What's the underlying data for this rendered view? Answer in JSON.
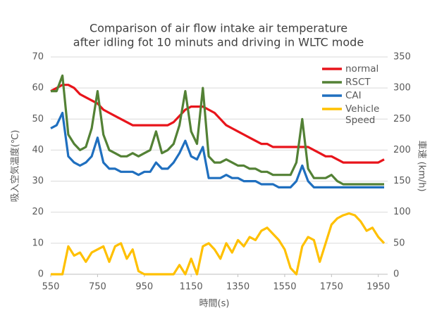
{
  "chart_data": {
    "type": "line",
    "title": [
      "Comparison of air flow intake air temperature",
      "after idling fot 10 minuts and driving in WLTC mode"
    ],
    "xlabel": "時間(s)",
    "ylabel": "吸入空気温度(℃)",
    "y2label": "車速 (km/h)",
    "x": [
      550,
      575,
      600,
      625,
      650,
      675,
      700,
      725,
      750,
      775,
      800,
      825,
      850,
      875,
      900,
      925,
      950,
      975,
      1000,
      1025,
      1050,
      1075,
      1100,
      1125,
      1150,
      1175,
      1200,
      1225,
      1250,
      1275,
      1300,
      1325,
      1350,
      1375,
      1400,
      1425,
      1450,
      1475,
      1500,
      1525,
      1550,
      1575,
      1600,
      1625,
      1650,
      1675,
      1700,
      1725,
      1750,
      1775,
      1800,
      1825,
      1850,
      1875,
      1900,
      1925,
      1950,
      1975
    ],
    "series": [
      {
        "name": "normal",
        "color": "#e8141b",
        "values": [
          59,
          60,
          61,
          61,
          60,
          58,
          57,
          56,
          55,
          53,
          52,
          51,
          50,
          49,
          48,
          48,
          48,
          48,
          48,
          48,
          48,
          49,
          51,
          53,
          54,
          54,
          54,
          53,
          52,
          50,
          48,
          47,
          46,
          45,
          44,
          43,
          42,
          42,
          41,
          41,
          41,
          41,
          41,
          41,
          41,
          40,
          39,
          38,
          38,
          37,
          36,
          36,
          36,
          36,
          36,
          36,
          36,
          37
        ]
      },
      {
        "name": "RSCT",
        "color": "#538135",
        "values": [
          59,
          59,
          64,
          45,
          42,
          40,
          41,
          47,
          59,
          45,
          40,
          39,
          38,
          38,
          39,
          38,
          39,
          40,
          46,
          39,
          40,
          42,
          48,
          59,
          46,
          42,
          60,
          38,
          36,
          36,
          37,
          36,
          35,
          35,
          34,
          34,
          33,
          33,
          32,
          32,
          32,
          32,
          36,
          50,
          34,
          31,
          31,
          31,
          32,
          30,
          29,
          29,
          29,
          29,
          29,
          29,
          29,
          29
        ]
      },
      {
        "name": "CAI",
        "color": "#1f6fbf",
        "values": [
          47,
          48,
          52,
          38,
          36,
          35,
          36,
          38,
          44,
          36,
          34,
          34,
          33,
          33,
          33,
          32,
          33,
          33,
          36,
          34,
          34,
          36,
          39,
          43,
          38,
          37,
          41,
          31,
          31,
          31,
          32,
          31,
          31,
          30,
          30,
          30,
          29,
          29,
          29,
          28,
          28,
          28,
          30,
          35,
          30,
          28,
          28,
          28,
          28,
          28,
          28,
          28,
          28,
          28,
          28,
          28,
          28,
          28
        ]
      },
      {
        "name": "Vehicle Speed",
        "color": "#ffc000",
        "axis": "y2",
        "values": [
          0,
          0,
          0,
          45,
          30,
          35,
          20,
          35,
          40,
          45,
          20,
          45,
          50,
          25,
          40,
          5,
          0,
          0,
          0,
          0,
          0,
          0,
          15,
          0,
          25,
          0,
          45,
          50,
          40,
          25,
          50,
          35,
          55,
          45,
          60,
          55,
          70,
          75,
          65,
          55,
          40,
          10,
          0,
          45,
          60,
          55,
          20,
          50,
          80,
          90,
          95,
          98,
          95,
          85,
          70,
          75,
          60,
          50
        ]
      }
    ],
    "xlim": [
      550,
      1990
    ],
    "xticks": [
      550,
      750,
      950,
      1150,
      1350,
      1550,
      1750,
      1950
    ],
    "ylim": [
      0,
      70
    ],
    "yticks": [
      0,
      10,
      20,
      30,
      40,
      50,
      60,
      70
    ],
    "y2lim": [
      0,
      350
    ],
    "y2ticks": [
      0,
      50,
      100,
      150,
      200,
      250,
      300,
      350
    ],
    "grid": true,
    "legend": "upper right"
  }
}
